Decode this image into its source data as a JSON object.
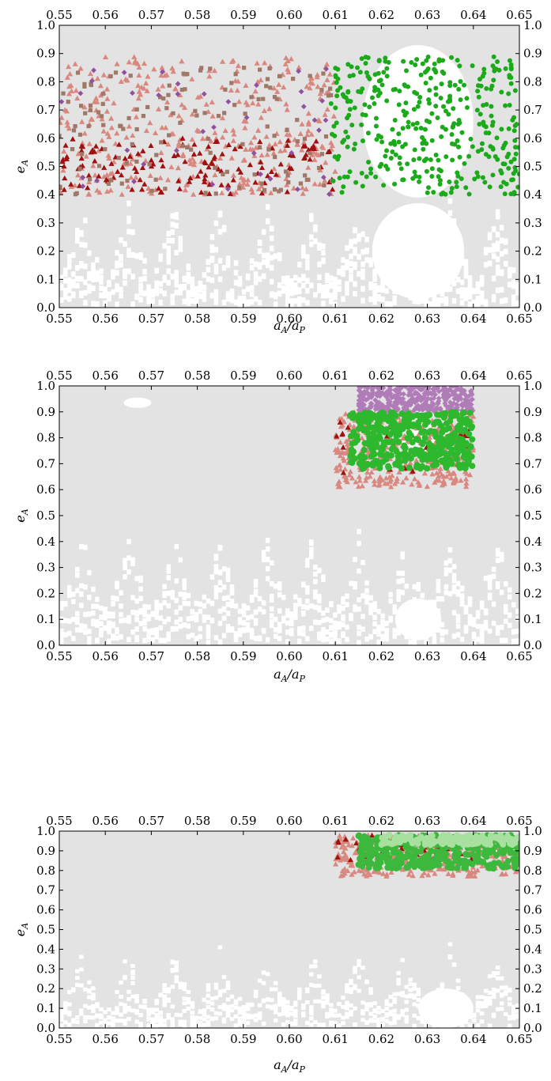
{
  "chart_data": [
    {
      "type": "scatter",
      "xlabel": "a_A/a_P",
      "ylabel": "e_A",
      "xlim": [
        0.55,
        0.65
      ],
      "ylim": [
        0.0,
        1.0
      ],
      "x_ticks": [
        "0.55",
        "0.56",
        "0.57",
        "0.58",
        "0.59",
        "0.60",
        "0.61",
        "0.62",
        "0.63",
        "0.64",
        "0.65"
      ],
      "y_ticks": [
        "0.0",
        "0.1",
        "0.2",
        "0.3",
        "0.4",
        "0.5",
        "0.6",
        "0.7",
        "0.8",
        "0.9",
        "1.0"
      ],
      "background": "stability map (grey = unstable, white = stable)",
      "mirrored_axes": true,
      "series": [
        {
          "marker": "triangle",
          "color": "#d98880",
          "x_range": [
            0.55,
            0.61
          ],
          "y_range": [
            0.4,
            0.89
          ],
          "density": "high"
        },
        {
          "marker": "triangle",
          "color": "#a01010",
          "x_range": [
            0.55,
            0.61
          ],
          "y_range": [
            0.4,
            0.6
          ],
          "density": "medium"
        },
        {
          "marker": "square",
          "color": "#a07868",
          "x_range": [
            0.55,
            0.61
          ],
          "y_range": [
            0.4,
            0.85
          ],
          "density": "medium"
        },
        {
          "marker": "diamond",
          "color": "#9050a0",
          "x_range": [
            0.55,
            0.61
          ],
          "y_range": [
            0.4,
            0.85
          ],
          "density": "low"
        },
        {
          "marker": "circle",
          "color": "#1aaa1a",
          "x_range": [
            0.609,
            0.65
          ],
          "y_range": [
            0.4,
            0.89
          ],
          "density": "high"
        }
      ]
    },
    {
      "type": "scatter",
      "xlabel": "a_A/a_P",
      "ylabel": "e_A",
      "xlim": [
        0.55,
        0.65
      ],
      "ylim": [
        0.0,
        1.0
      ],
      "x_ticks": [
        "0.55",
        "0.56",
        "0.57",
        "0.58",
        "0.59",
        "0.60",
        "0.61",
        "0.62",
        "0.63",
        "0.64",
        "0.65"
      ],
      "y_ticks": [
        "0.0",
        "0.1",
        "0.2",
        "0.3",
        "0.4",
        "0.5",
        "0.6",
        "0.7",
        "0.8",
        "0.9",
        "1.0"
      ],
      "background": "stability map (grey = unstable, white = stable)",
      "mirrored_axes": true,
      "series": [
        {
          "marker": "triangle",
          "color": "#d98880",
          "x_range": [
            0.61,
            0.64
          ],
          "y_range": [
            0.61,
            0.9
          ],
          "density": "high"
        },
        {
          "marker": "triangle",
          "color": "#a01010",
          "x_range": [
            0.61,
            0.64
          ],
          "y_range": [
            0.66,
            0.86
          ],
          "density": "low"
        },
        {
          "marker": "diamond",
          "color": "#b07cb8",
          "x_range": [
            0.615,
            0.64
          ],
          "y_range": [
            0.9,
            1.0
          ],
          "density": "high"
        },
        {
          "marker": "circle",
          "color": "#2db82d",
          "x_range": [
            0.613,
            0.64
          ],
          "y_range": [
            0.68,
            0.9
          ],
          "density": "high"
        }
      ]
    },
    {
      "type": "scatter",
      "xlabel": "a_A/a_P",
      "ylabel": "e_A",
      "xlim": [
        0.55,
        0.65
      ],
      "ylim": [
        0.0,
        1.0
      ],
      "x_ticks": [
        "0.55",
        "0.56",
        "0.57",
        "0.58",
        "0.59",
        "0.60",
        "0.61",
        "0.62",
        "0.63",
        "0.64",
        "0.65"
      ],
      "y_ticks": [
        "0.0",
        "0.1",
        "0.2",
        "0.3",
        "0.4",
        "0.5",
        "0.6",
        "0.7",
        "0.8",
        "0.9",
        "1.0"
      ],
      "background": "stability map (grey = unstable, white = stable)",
      "mirrored_axes": true,
      "series": [
        {
          "marker": "triangle",
          "color": "#d98880",
          "x_range": [
            0.61,
            0.65
          ],
          "y_range": [
            0.77,
            0.98
          ],
          "density": "high"
        },
        {
          "marker": "triangle",
          "color": "#a01010",
          "x_range": [
            0.61,
            0.64
          ],
          "y_range": [
            0.85,
            0.98
          ],
          "density": "low"
        },
        {
          "marker": "circle",
          "color": "#3cb83c",
          "x_range": [
            0.615,
            0.65
          ],
          "y_range": [
            0.81,
            0.98
          ],
          "density": "high"
        },
        {
          "marker": "circle",
          "color": "#a8e0a0",
          "x_range": [
            0.62,
            0.65
          ],
          "y_range": [
            0.93,
            0.98
          ],
          "density": "medium"
        }
      ]
    }
  ]
}
